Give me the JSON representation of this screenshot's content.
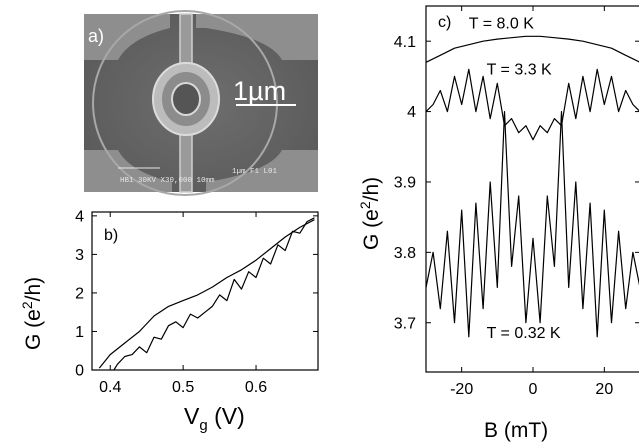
{
  "panel_a": {
    "label": "a)",
    "scale_bar": "1µm",
    "sem_caption_left": "HB1   30KV   X30,000 10mm",
    "sem_caption_right": "1µm F1 L01"
  },
  "chart_data": [
    {
      "panel": "b)",
      "type": "line",
      "xlabel": "Vg (V)",
      "ylabel": "G (e2/h)",
      "xlim": [
        0.375,
        0.685
      ],
      "ylim": [
        0,
        4.1
      ],
      "xticks": [
        0.4,
        0.5,
        0.6
      ],
      "yticks": [
        0,
        1,
        2,
        3,
        4
      ],
      "series": [
        {
          "x": [
            0.385,
            0.4,
            0.42,
            0.44,
            0.46,
            0.48,
            0.5,
            0.52,
            0.54,
            0.56,
            0.58,
            0.6,
            0.62,
            0.64,
            0.66,
            0.68
          ],
          "y": [
            0.05,
            0.4,
            0.7,
            1.0,
            1.4,
            1.65,
            1.8,
            1.95,
            2.15,
            2.4,
            2.6,
            2.85,
            3.15,
            3.45,
            3.7,
            3.9
          ]
        },
        {
          "x": [
            0.405,
            0.41,
            0.42,
            0.43,
            0.44,
            0.45,
            0.46,
            0.47,
            0.48,
            0.49,
            0.5,
            0.51,
            0.52,
            0.53,
            0.54,
            0.55,
            0.56,
            0.57,
            0.58,
            0.59,
            0.6,
            0.61,
            0.62,
            0.63,
            0.64,
            0.65,
            0.66,
            0.67,
            0.68
          ],
          "y": [
            0.0,
            0.15,
            0.35,
            0.4,
            0.6,
            0.45,
            0.85,
            0.8,
            1.15,
            1.25,
            1.1,
            1.45,
            1.35,
            1.5,
            1.65,
            1.95,
            1.8,
            2.35,
            2.1,
            2.55,
            2.4,
            2.9,
            2.75,
            3.25,
            3.1,
            3.6,
            3.55,
            3.85,
            3.95
          ]
        }
      ]
    },
    {
      "panel": "c)",
      "type": "line",
      "xlabel": "B (mT)",
      "ylabel": "G (e2/h)",
      "xlim": [
        -30,
        30
      ],
      "ylim": [
        3.63,
        4.15
      ],
      "xticks": [
        -20,
        0,
        20
      ],
      "yticks": [
        3.7,
        3.8,
        3.9,
        4,
        4.1
      ],
      "series": [
        {
          "name": "T = 8.0 K",
          "x": [
            -30,
            -26,
            -22,
            -18,
            -14,
            -10,
            -6,
            -2,
            2,
            6,
            10,
            14,
            18,
            22,
            26,
            30
          ],
          "y": [
            4.07,
            4.08,
            4.09,
            4.095,
            4.1,
            4.103,
            4.105,
            4.107,
            4.107,
            4.105,
            4.103,
            4.1,
            4.095,
            4.09,
            4.08,
            4.07
          ]
        },
        {
          "name": "T = 3.3 K",
          "x": [
            -30,
            -28,
            -26,
            -24,
            -22,
            -20,
            -18,
            -16,
            -14,
            -12,
            -10,
            -8,
            -6,
            -4,
            -2,
            0,
            2,
            4,
            6,
            8,
            10,
            12,
            14,
            16,
            18,
            20,
            22,
            24,
            26,
            28,
            30
          ],
          "y": [
            4.0,
            4.01,
            4.03,
            4.0,
            4.05,
            4.01,
            4.06,
            4.0,
            4.05,
            3.99,
            4.04,
            3.98,
            3.99,
            3.97,
            3.98,
            3.96,
            3.98,
            3.97,
            3.99,
            3.98,
            4.04,
            3.99,
            4.05,
            4.0,
            4.06,
            4.01,
            4.05,
            4.0,
            4.03,
            4.01,
            4.0
          ]
        },
        {
          "name": "T = 0.32 K",
          "x": [
            -30,
            -28,
            -26,
            -24,
            -22,
            -20,
            -18,
            -16,
            -14,
            -12,
            -10,
            -8,
            -6,
            -4,
            -2,
            0,
            2,
            4,
            6,
            8,
            10,
            12,
            14,
            16,
            18,
            20,
            22,
            24,
            26,
            28,
            30
          ],
          "y": [
            3.75,
            3.8,
            3.72,
            3.83,
            3.7,
            3.86,
            3.68,
            3.87,
            3.72,
            3.9,
            3.75,
            4.0,
            3.78,
            3.88,
            3.7,
            3.82,
            3.7,
            3.88,
            3.78,
            4.0,
            3.75,
            3.9,
            3.72,
            3.87,
            3.68,
            3.86,
            3.7,
            3.83,
            3.72,
            3.8,
            3.75
          ]
        }
      ]
    }
  ]
}
